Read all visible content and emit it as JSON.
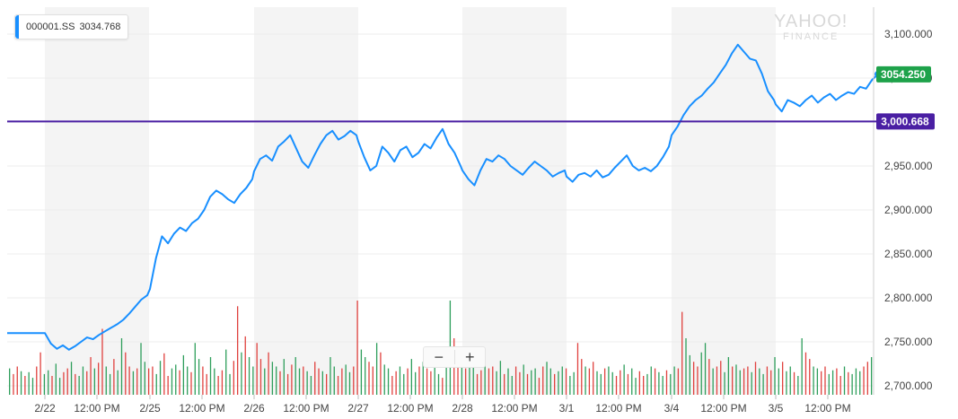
{
  "legend": {
    "symbol": "000001.SS",
    "value": "3034.768"
  },
  "watermark": {
    "brand": "YAHOO!",
    "sub": "FINANCE"
  },
  "zoom": {
    "minus": "−",
    "plus": "+"
  },
  "colors": {
    "line": "#188fff",
    "reference": "#4a1fa3",
    "current": "#1ea24a",
    "vol_up": "#2e9e5b",
    "vol_down": "#e0413e",
    "band": "#f4f4f4"
  },
  "chart_data": {
    "type": "line",
    "title": "",
    "xlabel": "",
    "ylabel": "",
    "ylim": [
      2700,
      3100
    ],
    "y_ticks": [
      "2,700.000",
      "2,750.000",
      "2,800.000",
      "2,850.000",
      "2,900.000",
      "2,950.000",
      "3,000.000",
      "3,050.000",
      "3,100.000"
    ],
    "x_ticks": [
      "2/22",
      "12:00 PM",
      "2/25",
      "12:00 PM",
      "2/26",
      "12:00 PM",
      "2/27",
      "12:00 PM",
      "2/28",
      "12:00 PM",
      "3/1",
      "12:00 PM",
      "3/4",
      "12:00 PM",
      "3/5",
      "12:00 PM"
    ],
    "reference_line": {
      "value": 3000.668,
      "label": "3,000.668"
    },
    "current": {
      "value": 3054.25,
      "label": "3054.250"
    },
    "pre_session": 2760,
    "sessions": [
      {
        "label": "2/22",
        "points": [
          2760,
          2748,
          2742,
          2746,
          2741,
          2745,
          2750,
          2755,
          2753,
          2758,
          2762,
          2766,
          2770,
          2775,
          2782,
          2790,
          2798,
          2803
        ]
      },
      {
        "label": "2/25",
        "points": [
          2810,
          2845,
          2870,
          2862,
          2873,
          2880,
          2876,
          2885,
          2890,
          2900,
          2915,
          2922,
          2918,
          2912,
          2908,
          2918,
          2925,
          2935
        ]
      },
      {
        "label": "2/26",
        "points": [
          2944,
          2958,
          2962,
          2956,
          2972,
          2978,
          2985,
          2970,
          2955,
          2948,
          2962,
          2975,
          2985,
          2990,
          2980,
          2984,
          2990,
          2985
        ]
      },
      {
        "label": "2/27",
        "points": [
          2978,
          2960,
          2945,
          2950,
          2972,
          2965,
          2955,
          2968,
          2972,
          2960,
          2965,
          2975,
          2970,
          2982,
          2992,
          2975,
          2965,
          2950
        ]
      },
      {
        "label": "2/28",
        "points": [
          2945,
          2935,
          2928,
          2945,
          2958,
          2955,
          2962,
          2958,
          2950,
          2945,
          2940,
          2948,
          2955,
          2950,
          2945,
          2938,
          2942,
          2945
        ]
      },
      {
        "label": "3/1",
        "points": [
          2938,
          2932,
          2940,
          2942,
          2938,
          2945,
          2937,
          2940,
          2948,
          2955,
          2962,
          2950,
          2945,
          2948,
          2944,
          2950,
          2960,
          2972
        ]
      },
      {
        "label": "3/4",
        "points": [
          2985,
          2995,
          3008,
          3018,
          3025,
          3030,
          3038,
          3045,
          3055,
          3065,
          3078,
          3088,
          3080,
          3072,
          3070,
          3055,
          3035,
          3025
        ]
      },
      {
        "label": "3/5",
        "points": [
          3020,
          3012,
          3025,
          3022,
          3018,
          3025,
          3030,
          3022,
          3028,
          3032,
          3025,
          3030,
          3034,
          3032,
          3040,
          3038,
          3048,
          3054.25
        ]
      }
    ],
    "volume": {
      "values": [
        28,
        22,
        30,
        25,
        20,
        24,
        18,
        30,
        45,
        22,
        26,
        20,
        33,
        18,
        24,
        28,
        35,
        22,
        20,
        30,
        25,
        40,
        28,
        34,
        70,
        30,
        22,
        38,
        26,
        60,
        45,
        30,
        25,
        28,
        55,
        35,
        28,
        30,
        22,
        36,
        44,
        20,
        28,
        32,
        26,
        42,
        30,
        24,
        55,
        38,
        30,
        22,
        40,
        28,
        20,
        26,
        48,
        22,
        36,
        94,
        45,
        62,
        40,
        30,
        55,
        38,
        28,
        45,
        35,
        30,
        25,
        38,
        22,
        32,
        40,
        28,
        30,
        25,
        20,
        35,
        28,
        25,
        22,
        40,
        30,
        20,
        28,
        32,
        24,
        30,
        100,
        48,
        40,
        35,
        30,
        55,
        45,
        32,
        28,
        20,
        25,
        30,
        22,
        28,
        38,
        24,
        30,
        35,
        28,
        25,
        40,
        22,
        18,
        30,
        100,
        60,
        45,
        35,
        28,
        40,
        30,
        22,
        26,
        34,
        28,
        30,
        25,
        36,
        22,
        28,
        20,
        30,
        24,
        32,
        22,
        26,
        28,
        18,
        30,
        35,
        28,
        22,
        25,
        30,
        28,
        20,
        24,
        55,
        38,
        30,
        28,
        35,
        25,
        22,
        28,
        30,
        24,
        20,
        26,
        32,
        22,
        28,
        18,
        25,
        20,
        22,
        30,
        28,
        24,
        20,
        26,
        22,
        30,
        28,
        88,
        60,
        42,
        35,
        30,
        45,
        55,
        38,
        28,
        30,
        36,
        24,
        40,
        30,
        32,
        26,
        28,
        30,
        24,
        35,
        28,
        22,
        30,
        26,
        40,
        28,
        35,
        25,
        30,
        24,
        20,
        60,
        45,
        38,
        30,
        28,
        25,
        30,
        22,
        26,
        28,
        20,
        30,
        24,
        22,
        28,
        25,
        30,
        35,
        40
      ],
      "directions": "udduduudduuduudduduuddudduuduudduduudduudduuduuduudduudduudduduudduduududduuduudduduudduudduudduduudduuduududduuduudduduuddudduuduudduduudduuduuduuddudduuduudduduudduuduuduudduudduududduuduudduduudduuduuduudduudduudduduu"
    }
  }
}
